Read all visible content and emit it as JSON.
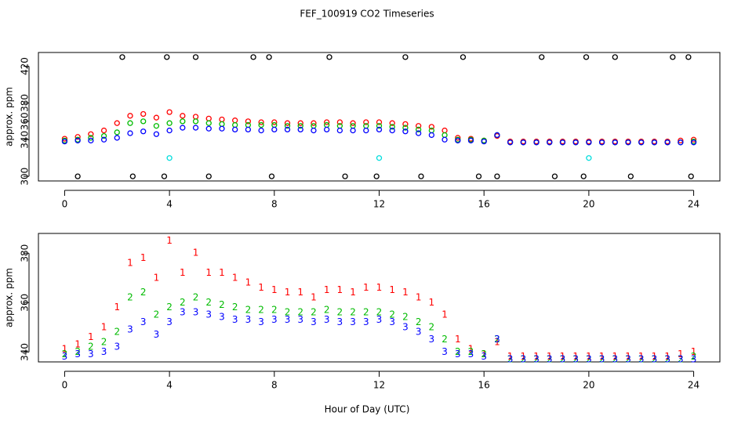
{
  "chart_data": [
    {
      "type": "scatter",
      "title": "FEF_100919  CO2 Timeseries",
      "ylabel": "approx. ppm",
      "marker": "circle",
      "xlim": [
        -1,
        25
      ],
      "xticks": [
        0,
        4,
        8,
        12,
        16,
        20,
        24
      ],
      "ylim": [
        295,
        435
      ],
      "yticks": [
        300,
        340,
        360,
        380,
        420
      ],
      "series": [
        {
          "color": "#000000",
          "x": [
            0.5,
            2.2,
            2.6,
            3.8,
            3.9,
            5,
            5.5,
            7.2,
            7.8,
            7.9,
            10.1,
            10.7,
            11.9,
            13,
            13.6,
            15.2,
            15.8,
            16.5,
            18.2,
            18.7,
            19.8,
            19.9,
            21,
            21.6,
            23.2,
            23.8,
            23.9
          ],
          "values": [
            300,
            430,
            300,
            300,
            430,
            430,
            300,
            430,
            430,
            300,
            430,
            300,
            300,
            430,
            300,
            430,
            300,
            300,
            430,
            300,
            300,
            430,
            430,
            300,
            430,
            430,
            300
          ]
        },
        {
          "color": "#ff0000",
          "x": [
            0,
            0.5,
            1,
            1.5,
            2,
            2.5,
            3,
            3.5,
            4,
            4.5,
            5,
            5.5,
            6,
            6.5,
            7,
            7.5,
            8,
            8.5,
            9,
            9.5,
            10,
            10.5,
            11,
            11.5,
            12,
            12.5,
            13,
            13.5,
            14,
            14.5,
            15,
            15.5,
            16,
            16.5,
            17,
            17.5,
            18,
            18.5,
            19,
            19.5,
            20,
            20.5,
            21,
            21.5,
            22,
            22.5,
            23,
            23.5,
            24
          ],
          "values": [
            341,
            343,
            346,
            350,
            358,
            366,
            368,
            364,
            370,
            366,
            365,
            363,
            362,
            361,
            360,
            359,
            359,
            358,
            358,
            358,
            359,
            359,
            358,
            359,
            359,
            358,
            357,
            355,
            354,
            350,
            342,
            341,
            339,
            344,
            338,
            338,
            338,
            338,
            338,
            338,
            338,
            338,
            338,
            338,
            338,
            338,
            338,
            339,
            340
          ]
        },
        {
          "color": "#00bb00",
          "x": [
            0,
            0.5,
            1,
            1.5,
            2,
            2.5,
            3,
            3.5,
            4,
            4.5,
            5,
            5.5,
            6,
            6.5,
            7,
            7.5,
            8,
            8.5,
            9,
            9.5,
            10,
            10.5,
            11,
            11.5,
            12,
            12.5,
            13,
            13.5,
            14,
            14.5,
            15,
            15.5,
            16,
            16.5,
            17,
            17.5,
            18,
            18.5,
            19,
            19.5,
            20,
            20.5,
            21,
            21.5,
            22,
            22.5,
            23,
            23.5,
            24
          ],
          "values": [
            339,
            340,
            342,
            344,
            348,
            358,
            360,
            355,
            358,
            360,
            360,
            358,
            357,
            356,
            356,
            356,
            356,
            355,
            355,
            355,
            356,
            355,
            355,
            355,
            355,
            354,
            353,
            351,
            350,
            345,
            340,
            340,
            339,
            345,
            337,
            337,
            337,
            337,
            337,
            337,
            337,
            337,
            337,
            337,
            337,
            337,
            337,
            337,
            338
          ]
        },
        {
          "color": "#0000ff",
          "x": [
            0,
            0.5,
            1,
            1.5,
            2,
            2.5,
            3,
            3.5,
            4,
            4.5,
            5,
            5.5,
            6,
            6.5,
            7,
            7.5,
            8,
            8.5,
            9,
            9.5,
            10,
            10.5,
            11,
            11.5,
            12,
            12.5,
            13,
            13.5,
            14,
            14.5,
            15,
            15.5,
            16,
            16.5,
            17,
            17.5,
            18,
            18.5,
            19,
            19.5,
            20,
            20.5,
            21,
            21.5,
            22,
            22.5,
            23,
            23.5,
            24
          ],
          "values": [
            338,
            339,
            339,
            340,
            342,
            347,
            349,
            346,
            350,
            353,
            353,
            352,
            352,
            351,
            351,
            350,
            351,
            351,
            351,
            350,
            351,
            350,
            350,
            350,
            351,
            350,
            349,
            347,
            345,
            340,
            339,
            339,
            338,
            345,
            337,
            337,
            337,
            337,
            337,
            337,
            337,
            337,
            337,
            337,
            337,
            337,
            337,
            337,
            337
          ]
        },
        {
          "color": "#00dddd",
          "x": [
            4,
            12,
            20
          ],
          "values": [
            320,
            320,
            320
          ]
        }
      ]
    },
    {
      "type": "scatter",
      "xlabel": "Hour of Day (UTC)",
      "ylabel": "approx. ppm",
      "marker": "label",
      "xlim": [
        -1,
        25
      ],
      "xticks": [
        0,
        4,
        8,
        12,
        16,
        20,
        24
      ],
      "ylim": [
        336,
        388
      ],
      "yticks": [
        340,
        360,
        380
      ],
      "series": [
        {
          "name": "1",
          "color": "#ff0000",
          "x": [
            0,
            0.5,
            1,
            1.5,
            2,
            2.5,
            3,
            3.5,
            4,
            4.5,
            5,
            5.5,
            6,
            6.5,
            7,
            7.5,
            8,
            8.5,
            9,
            9.5,
            10,
            10.5,
            11,
            11.5,
            12,
            12.5,
            13,
            13.5,
            14,
            14.5,
            15,
            15.5,
            16,
            16.5,
            17,
            17.5,
            18,
            18.5,
            19,
            19.5,
            20,
            20.5,
            21,
            21.5,
            22,
            22.5,
            23,
            23.5,
            24
          ],
          "values": [
            341,
            343,
            346,
            350,
            358,
            376,
            378,
            370,
            385,
            372,
            380,
            372,
            372,
            370,
            368,
            366,
            365,
            364,
            364,
            362,
            365,
            365,
            364,
            366,
            366,
            365,
            364,
            362,
            360,
            355,
            345,
            341,
            339,
            344,
            338,
            338,
            338,
            338,
            338,
            338,
            338,
            338,
            338,
            338,
            338,
            338,
            338,
            339,
            340
          ]
        },
        {
          "name": "2",
          "color": "#00bb00",
          "x": [
            0,
            0.5,
            1,
            1.5,
            2,
            2.5,
            3,
            3.5,
            4,
            4.5,
            5,
            5.5,
            6,
            6.5,
            7,
            7.5,
            8,
            8.5,
            9,
            9.5,
            10,
            10.5,
            11,
            11.5,
            12,
            12.5,
            13,
            13.5,
            14,
            14.5,
            15,
            15.5,
            16,
            16.5,
            17,
            17.5,
            18,
            18.5,
            19,
            19.5,
            20,
            20.5,
            21,
            21.5,
            22,
            22.5,
            23,
            23.5,
            24
          ],
          "values": [
            339,
            340,
            342,
            344,
            348,
            362,
            364,
            355,
            358,
            360,
            362,
            360,
            359,
            358,
            357,
            357,
            357,
            356,
            356,
            356,
            357,
            356,
            356,
            356,
            356,
            355,
            354,
            352,
            350,
            345,
            340,
            340,
            339,
            345,
            337,
            337,
            337,
            337,
            337,
            337,
            337,
            337,
            337,
            337,
            337,
            337,
            337,
            337,
            338
          ]
        },
        {
          "name": "3",
          "color": "#0000ff",
          "x": [
            0,
            0.5,
            1,
            1.5,
            2,
            2.5,
            3,
            3.5,
            4,
            4.5,
            5,
            5.5,
            6,
            6.5,
            7,
            7.5,
            8,
            8.5,
            9,
            9.5,
            10,
            10.5,
            11,
            11.5,
            12,
            12.5,
            13,
            13.5,
            14,
            14.5,
            15,
            15.5,
            16,
            16.5,
            17,
            17.5,
            18,
            18.5,
            19,
            19.5,
            20,
            20.5,
            21,
            21.5,
            22,
            22.5,
            23,
            23.5,
            24
          ],
          "values": [
            338,
            339,
            339,
            340,
            342,
            349,
            352,
            347,
            352,
            356,
            356,
            355,
            354,
            353,
            353,
            352,
            353,
            353,
            353,
            352,
            353,
            352,
            352,
            352,
            353,
            352,
            350,
            348,
            345,
            340,
            339,
            339,
            338,
            345,
            337,
            337,
            337,
            337,
            337,
            337,
            337,
            337,
            337,
            337,
            337,
            337,
            337,
            337,
            337
          ]
        }
      ]
    }
  ]
}
